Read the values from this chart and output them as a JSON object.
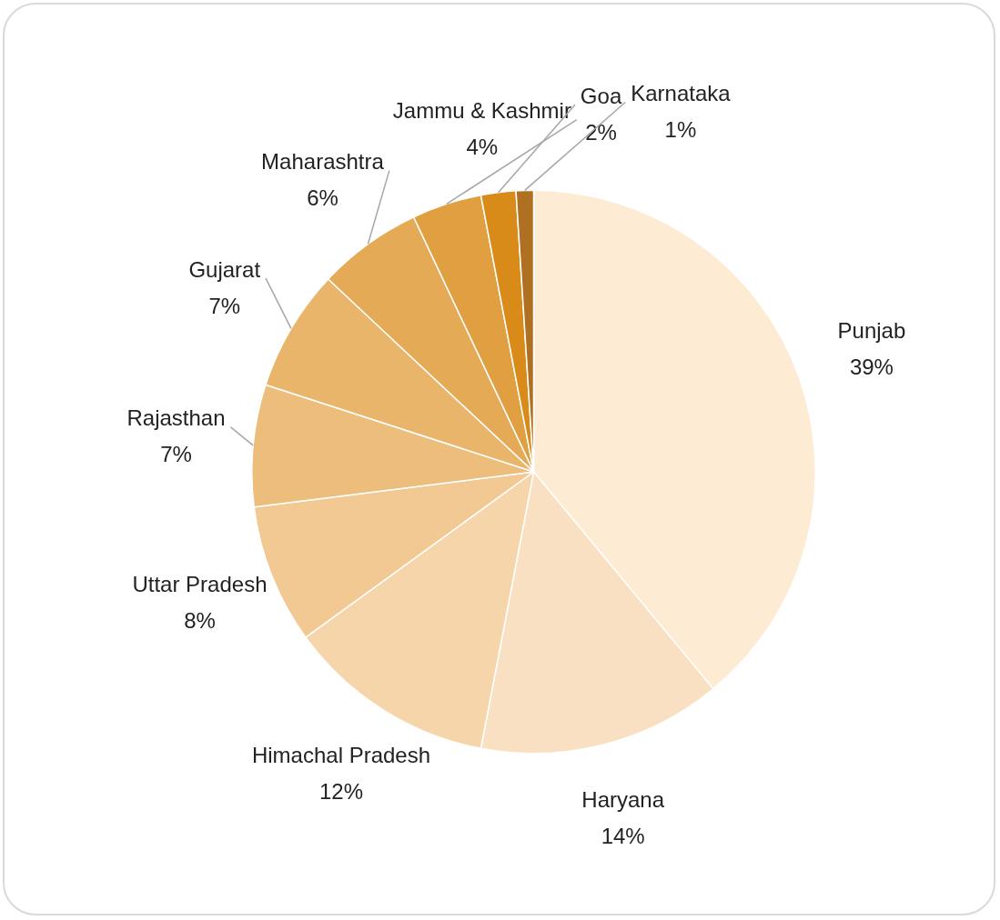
{
  "chart_data": {
    "type": "pie",
    "categories": [
      "Punjab",
      "Haryana",
      "Himachal Pradesh",
      "Uttar Pradesh",
      "Rajasthan",
      "Gujarat",
      "Maharashtra",
      "Jammu & Kashmir",
      "Goa",
      "Karnataka"
    ],
    "values": [
      39,
      14,
      12,
      8,
      7,
      7,
      6,
      4,
      2,
      1
    ],
    "value_labels": [
      "39%",
      "14%",
      "12%",
      "8%",
      "7%",
      "7%",
      "6%",
      "4%",
      "2%",
      "1%"
    ],
    "colors": [
      "#fdebd4",
      "#fae0c2",
      "#f7d5aa",
      "#f2c992",
      "#edbd7c",
      "#e9b56b",
      "#e4aa56",
      "#e09f40",
      "#d98b1a",
      "#b07021"
    ],
    "legend": false
  }
}
